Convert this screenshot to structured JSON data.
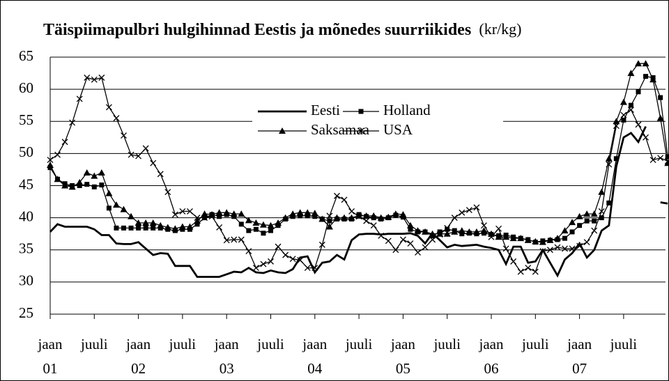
{
  "chart_data": {
    "type": "line",
    "title": "Täispiimapulbri hulgihinnad Eestis ja mõnedes suurriikides",
    "unit": "(kr/kg)",
    "categories": [
      "jaan",
      null,
      null,
      null,
      null,
      null,
      "juuli",
      null,
      null,
      null,
      null,
      null,
      "jaan",
      null,
      null,
      null,
      null,
      null,
      "juuli",
      null,
      null,
      null,
      null,
      null,
      "jaan",
      null,
      null,
      null,
      null,
      null,
      "juuli",
      null,
      null,
      null,
      null,
      null,
      "jaan",
      null,
      null,
      null,
      null,
      null,
      "juuli",
      null,
      null,
      null,
      null,
      null,
      "jaan",
      null,
      null,
      null,
      null,
      null,
      "juuli",
      null,
      null,
      null,
      null,
      null,
      "jaan",
      null,
      null,
      null,
      null,
      null,
      "juuli",
      null,
      null,
      null,
      null,
      null,
      "jaan",
      null,
      null,
      null,
      null,
      null,
      "juuli",
      null,
      null,
      null,
      null,
      null,
      null
    ],
    "year_labels": [
      "01",
      null,
      null,
      null,
      null,
      null,
      null,
      null,
      null,
      null,
      null,
      null,
      "02",
      null,
      null,
      null,
      null,
      null,
      null,
      null,
      null,
      null,
      null,
      null,
      "03",
      null,
      null,
      null,
      null,
      null,
      null,
      null,
      null,
      null,
      null,
      null,
      "04",
      null,
      null,
      null,
      null,
      null,
      null,
      null,
      null,
      null,
      null,
      null,
      "05",
      null,
      null,
      null,
      null,
      null,
      null,
      null,
      null,
      null,
      null,
      null,
      "06",
      null,
      null,
      null,
      null,
      null,
      null,
      null,
      null,
      null,
      null,
      null,
      "07",
      null,
      null,
      null,
      null,
      null,
      null,
      null,
      null,
      null,
      null,
      null,
      null
    ],
    "series": [
      {
        "name": "Eesti",
        "color": "#000000",
        "marker": "none",
        "values": [
          37.8,
          39,
          38.6,
          38.6,
          38.6,
          38.6,
          38.2,
          37.3,
          37.3,
          36,
          35.9,
          35.9,
          36.2,
          35.2,
          34.2,
          34.5,
          34.4,
          32.5,
          32.5,
          32.5,
          30.8,
          30.8,
          30.8,
          30.8,
          31.2,
          31.6,
          31.5,
          32.2,
          31.5,
          31.4,
          31.8,
          31.5,
          31.4,
          32,
          33.8,
          34,
          31.5,
          33,
          33.2,
          34.2,
          33.5,
          36.5,
          37.4,
          37.5,
          37.5,
          37.4,
          37.5,
          37.5,
          37.5,
          37.6,
          37.2,
          36,
          37.6,
          36.5,
          35.4,
          35.8,
          35.6,
          35.7,
          35.8,
          35.5,
          35.3,
          35,
          32.8,
          35.5,
          35.5,
          33,
          33.2,
          35,
          33,
          31,
          33.5,
          34.5,
          36,
          33.8,
          35,
          38,
          38.8,
          48,
          52.5,
          53.2,
          51.8,
          54.2,
          null,
          42.4,
          42.2
        ]
      },
      {
        "name": "Holland",
        "color": "#000000",
        "marker": "square",
        "values": [
          47.8,
          46,
          45.3,
          45,
          45,
          45.2,
          44.8,
          45.1,
          41.5,
          38.4,
          38.4,
          38.4,
          38.4,
          38.4,
          38.4,
          38.4,
          38.2,
          38,
          38.2,
          38.2,
          39,
          40,
          40.5,
          40.2,
          40.5,
          40.2,
          39,
          38,
          38.2,
          37.6,
          38,
          38.8,
          39.8,
          40.2,
          40.3,
          40.3,
          40.2,
          39.8,
          39.5,
          39.8,
          39.8,
          39.8,
          40.5,
          40.2,
          40,
          39.8,
          40,
          40.4,
          40.1,
          38.2,
          37.8,
          37.8,
          37.2,
          37.8,
          38.2,
          38,
          37.5,
          37.6,
          37.5,
          37.6,
          37.4,
          37.2,
          37.3,
          37,
          36.8,
          36.6,
          36.2,
          36.4,
          36.5,
          36.6,
          36.8,
          37.8,
          38.8,
          39.5,
          39.5,
          40,
          42.3,
          49.2,
          55.2,
          57.5,
          59.6,
          62,
          61.8,
          58.7,
          49.5
        ]
      },
      {
        "name": "Saksamaa",
        "color": "#000000",
        "marker": "triangle",
        "values": [
          48.2,
          46,
          45,
          44.8,
          45.5,
          47,
          46.5,
          47,
          43.8,
          42,
          41.3,
          40.2,
          39.2,
          39.2,
          39.2,
          38.8,
          38.5,
          38.3,
          38.6,
          38.6,
          39.5,
          40.6,
          40.5,
          40.8,
          40.8,
          40.6,
          40.6,
          39.6,
          39.2,
          38.9,
          38.8,
          39.2,
          40,
          40.6,
          40.8,
          40.8,
          40.7,
          39.8,
          38.6,
          40,
          40,
          40,
          40.3,
          40.3,
          40.3,
          40,
          40.1,
          40.6,
          40.5,
          38.8,
          38,
          37.8,
          37.5,
          37.5,
          37.5,
          37.8,
          38,
          37.8,
          37.8,
          38,
          37.5,
          37,
          37,
          36.8,
          36.8,
          36.5,
          36.3,
          36.2,
          36.5,
          36.8,
          38,
          39.3,
          40.2,
          40.6,
          40.6,
          44,
          49.2,
          55,
          58,
          62.5,
          64,
          64,
          61.5,
          55.5,
          48.5
        ]
      },
      {
        "name": "USA",
        "color": "#000000",
        "marker": "x",
        "values": [
          49,
          49.8,
          51.8,
          54.8,
          58.5,
          61.8,
          61.5,
          61.8,
          57.2,
          55.5,
          52.8,
          49.8,
          49.6,
          50.8,
          48.5,
          46.8,
          44,
          40.5,
          41,
          41,
          40,
          40,
          40.2,
          38.5,
          36.5,
          36.6,
          36.6,
          34.8,
          32.2,
          32.8,
          33.2,
          35.5,
          34.2,
          33.6,
          33.4,
          32.2,
          32.2,
          35.8,
          40.3,
          43.4,
          42.8,
          41,
          40.2,
          39.5,
          38.8,
          37.2,
          36.4,
          35,
          36.6,
          36,
          34.6,
          35.4,
          36.6,
          37.4,
          38.4,
          40,
          40.8,
          41.2,
          41.6,
          38.8,
          37,
          38.3,
          35.2,
          33.2,
          31.6,
          32.2,
          31.6,
          34.8,
          35,
          35.4,
          35.2,
          35.2,
          35.6,
          36.2,
          38,
          41,
          48.3,
          54.3,
          56,
          56.8,
          54.5,
          52.5,
          49,
          49.3,
          48.8
        ]
      }
    ],
    "ylim": [
      25,
      65
    ],
    "yticks": [
      25,
      30,
      35,
      40,
      45,
      50,
      55,
      60,
      65
    ],
    "grid": true
  }
}
